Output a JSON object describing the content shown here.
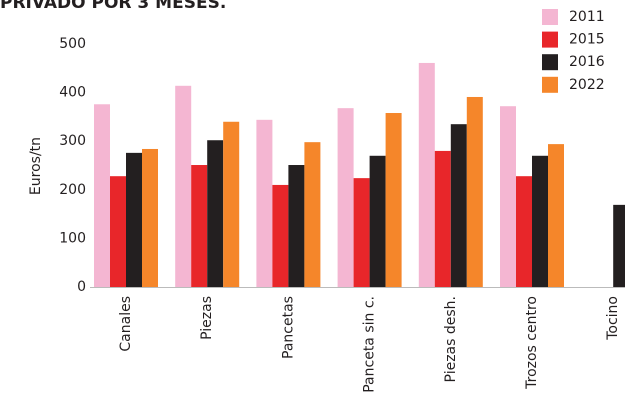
{
  "chart_data": {
    "type": "bar",
    "title": "PRIVADO POR 3 MESES.",
    "y_label": "Euros/tn",
    "categories": [
      "Canales",
      "Piezas",
      "Pancetas",
      "Panceta sin c.",
      "Piezas desh.",
      "Trozos centro",
      "Tocino"
    ],
    "series": [
      {
        "name": "2011",
        "color": "#f4b6d2",
        "values": [
          376,
          414,
          344,
          368,
          461,
          372,
          null
        ]
      },
      {
        "name": "2015",
        "color": "#e8262a",
        "values": [
          228,
          251,
          210,
          224,
          280,
          228,
          null
        ]
      },
      {
        "name": "2016",
        "color": "#231f20",
        "values": [
          276,
          302,
          251,
          270,
          335,
          270,
          169
        ]
      },
      {
        "name": "2022",
        "color": "#f5862a",
        "values": [
          284,
          340,
          298,
          358,
          391,
          294,
          null
        ]
      }
    ],
    "ylim": [
      0,
      500
    ],
    "yticks": [
      0,
      100,
      200,
      300,
      400,
      500
    ],
    "grid": false,
    "legend": "top-right"
  }
}
